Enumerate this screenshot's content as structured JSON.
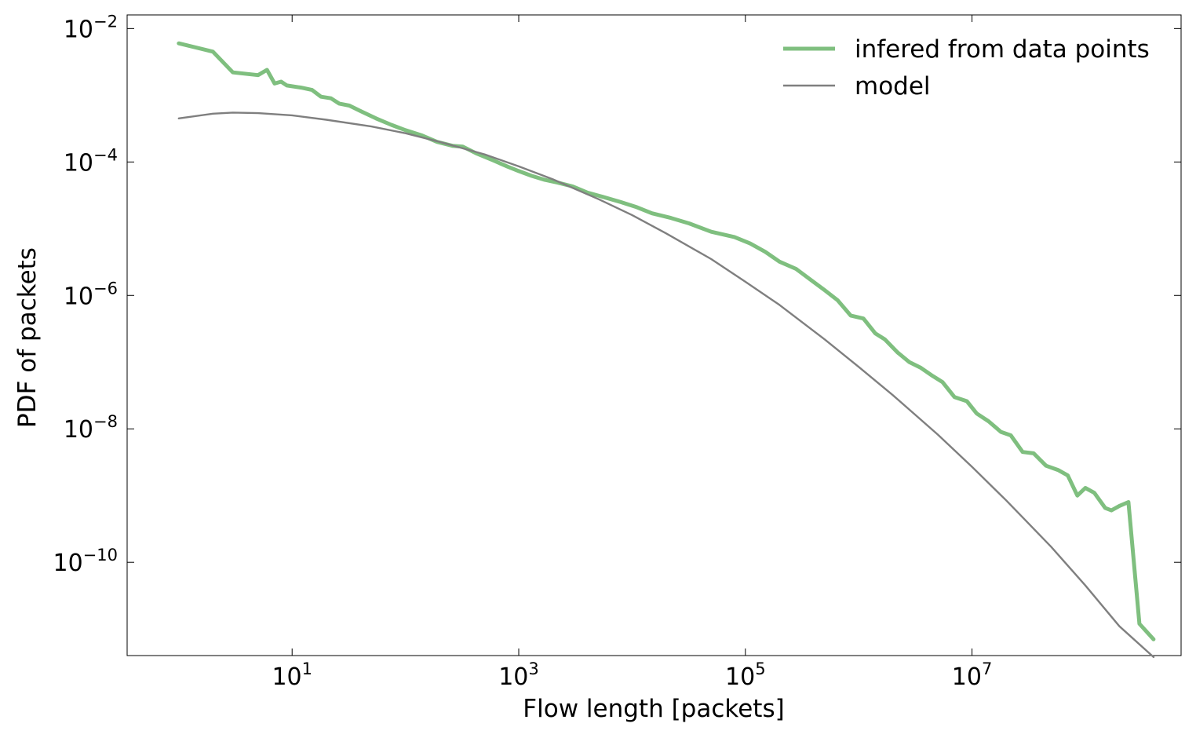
{
  "chart_data": {
    "type": "line",
    "title": "",
    "xlabel": "Flow length [packets]",
    "ylabel": "PDF of packets",
    "x_scale": "log",
    "y_scale": "log",
    "xlim": [
      0.35,
      700000000
    ],
    "ylim": [
      4e-12,
      0.016
    ],
    "x_ticks": [
      {
        "value": 10,
        "base": "10",
        "exp": "1"
      },
      {
        "value": 1000,
        "base": "10",
        "exp": "3"
      },
      {
        "value": 100000,
        "base": "10",
        "exp": "5"
      },
      {
        "value": 10000000,
        "base": "10",
        "exp": "7"
      }
    ],
    "y_ticks": [
      {
        "value": 0.01,
        "base": "10",
        "exp": "−2"
      },
      {
        "value": 0.0001,
        "base": "10",
        "exp": "−4"
      },
      {
        "value": 1e-06,
        "base": "10",
        "exp": "−6"
      },
      {
        "value": 1e-08,
        "base": "10",
        "exp": "−8"
      },
      {
        "value": 1e-10,
        "base": "10",
        "exp": "−10"
      }
    ],
    "grid": false,
    "legend_position": "top-right",
    "series": [
      {
        "name": "infered from data points",
        "color": "#7fbf7f",
        "points": [
          [
            1,
            0.006
          ],
          [
            2,
            0.0045
          ],
          [
            3,
            0.0022
          ],
          [
            5,
            0.002
          ],
          [
            6,
            0.0024
          ],
          [
            7,
            0.0015
          ],
          [
            8,
            0.0016
          ],
          [
            9,
            0.0014
          ],
          [
            12,
            0.0013
          ],
          [
            15,
            0.0012
          ],
          [
            18,
            0.00095
          ],
          [
            22,
            0.0009
          ],
          [
            26,
            0.00075
          ],
          [
            32,
            0.0007
          ],
          [
            40,
            0.00058
          ],
          [
            55,
            0.00045
          ],
          [
            75,
            0.00036
          ],
          [
            100,
            0.0003
          ],
          [
            140,
            0.00025
          ],
          [
            190,
            0.0002
          ],
          [
            260,
            0.000175
          ],
          [
            320,
            0.00017
          ],
          [
            420,
            0.000135
          ],
          [
            600,
            0.000105
          ],
          [
            800,
            8.5e-05
          ],
          [
            1000,
            7.3e-05
          ],
          [
            1300,
            6.2e-05
          ],
          [
            1700,
            5.4e-05
          ],
          [
            2200,
            4.9e-05
          ],
          [
            3000,
            4.3e-05
          ],
          [
            4000,
            3.5e-05
          ],
          [
            5500,
            3e-05
          ],
          [
            8000,
            2.5e-05
          ],
          [
            11000,
            2.1e-05
          ],
          [
            15000,
            1.7e-05
          ],
          [
            22000,
            1.45e-05
          ],
          [
            32000,
            1.2e-05
          ],
          [
            50000,
            9e-06
          ],
          [
            80000,
            7.5e-06
          ],
          [
            110000,
            6e-06
          ],
          [
            150000,
            4.5e-06
          ],
          [
            200000,
            3.2e-06
          ],
          [
            280000,
            2.5e-06
          ],
          [
            380000,
            1.7e-06
          ],
          [
            500000,
            1.2e-06
          ],
          [
            650000,
            8.5e-07
          ],
          [
            850000,
            5e-07
          ],
          [
            1100000,
            4.5e-07
          ],
          [
            1400000,
            2.7e-07
          ],
          [
            1700000,
            2.2e-07
          ],
          [
            2200000,
            1.4e-07
          ],
          [
            2800000,
            1e-07
          ],
          [
            3500000,
            8.3e-08
          ],
          [
            4500000,
            6.2e-08
          ],
          [
            5500000,
            5e-08
          ],
          [
            7000000,
            3e-08
          ],
          [
            9000000,
            2.6e-08
          ],
          [
            11000000,
            1.7e-08
          ],
          [
            14000000,
            1.3e-08
          ],
          [
            18000000,
            9e-09
          ],
          [
            22000000,
            8e-09
          ],
          [
            28000000,
            4.5e-09
          ],
          [
            35000000,
            4.3e-09
          ],
          [
            45000000,
            2.8e-09
          ],
          [
            58000000,
            2.4e-09
          ],
          [
            70000000,
            2e-09
          ],
          [
            85000000,
            1e-09
          ],
          [
            100000000,
            1.3e-09
          ],
          [
            120000000,
            1.1e-09
          ],
          [
            150000000,
            6.5e-10
          ],
          [
            170000000,
            6e-10
          ],
          [
            200000000,
            7e-10
          ],
          [
            240000000,
            8e-10
          ],
          [
            300000000,
            1.2e-11
          ],
          [
            400000000,
            7e-12
          ]
        ]
      },
      {
        "name": "model",
        "color": "#7f7f7f",
        "points": [
          [
            1,
            0.00045
          ],
          [
            2,
            0.00053
          ],
          [
            3,
            0.00055
          ],
          [
            5,
            0.00054
          ],
          [
            10,
            0.0005
          ],
          [
            20,
            0.00043
          ],
          [
            50,
            0.00034
          ],
          [
            100,
            0.00027
          ],
          [
            200,
            0.0002
          ],
          [
            500,
            0.00013
          ],
          [
            1000,
            8.6e-05
          ],
          [
            2000,
            5.5e-05
          ],
          [
            5000,
            2.8e-05
          ],
          [
            10000,
            1.6e-05
          ],
          [
            20000,
            8.5e-06
          ],
          [
            50000,
            3.5e-06
          ],
          [
            100000,
            1.6e-06
          ],
          [
            200000,
            7.2e-07
          ],
          [
            500000,
            2.2e-07
          ],
          [
            1000000,
            8.5e-08
          ],
          [
            2000000,
            3.2e-08
          ],
          [
            5000000,
            8.2e-09
          ],
          [
            10000000,
            2.7e-09
          ],
          [
            20000000,
            8.5e-10
          ],
          [
            50000000,
            1.7e-10
          ],
          [
            100000000,
            4.5e-11
          ],
          [
            200000000,
            1.1e-11
          ],
          [
            400000000,
            3.8e-12
          ]
        ]
      }
    ]
  }
}
